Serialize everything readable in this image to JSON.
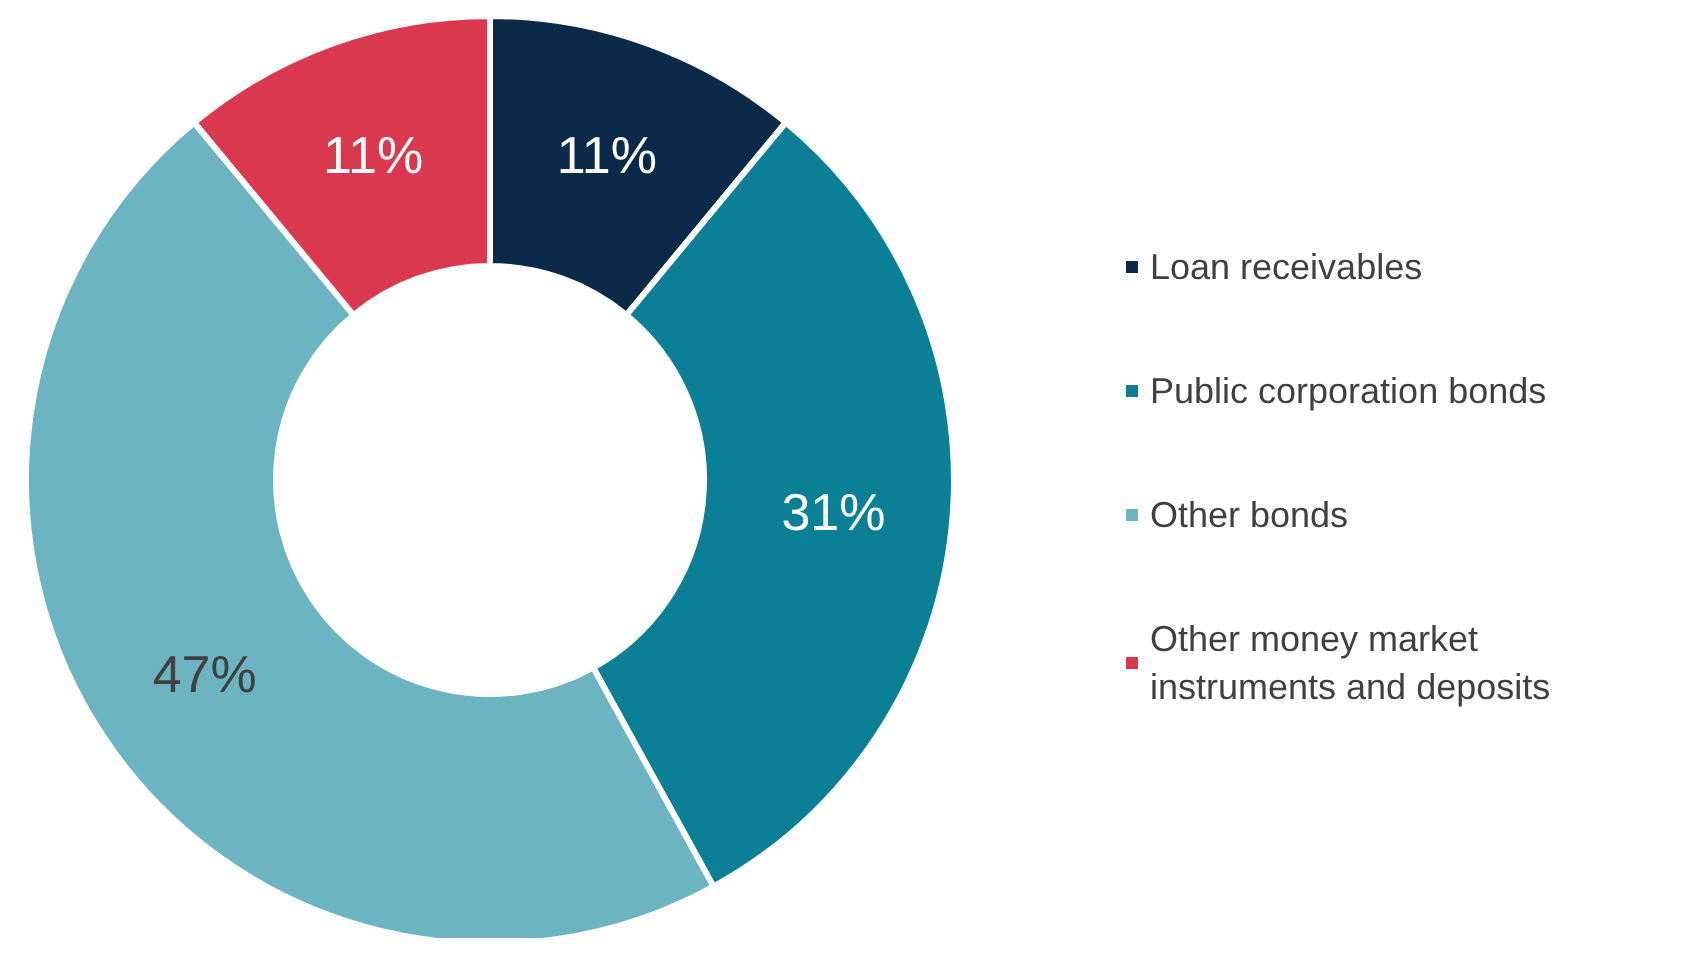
{
  "chart_data": {
    "type": "donut",
    "categories": [
      "Loan receivables",
      "Public corporation bonds",
      "Other bonds",
      "Other money market instruments and deposits"
    ],
    "values": [
      11,
      31,
      47,
      11
    ],
    "colors": [
      "#0b2a4a",
      "#0a7f96",
      "#6cb4c1",
      "#d9384f"
    ],
    "value_labels": [
      "11%",
      "31%",
      "47%",
      "11%"
    ],
    "legend": "right"
  }
}
